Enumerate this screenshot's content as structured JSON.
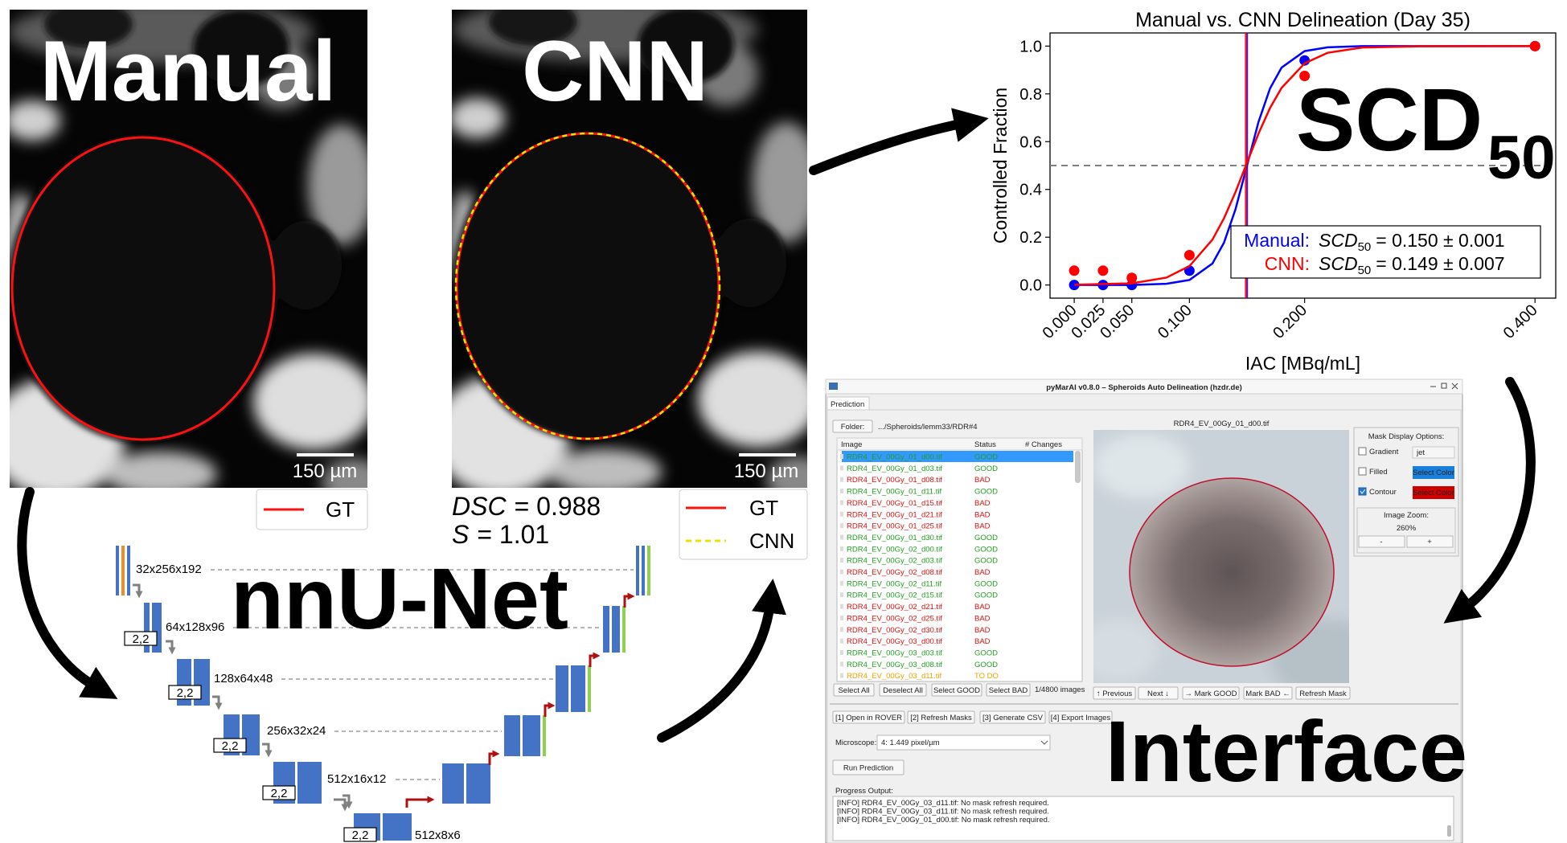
{
  "panels": {
    "manual": {
      "title": "Manual",
      "scale_bar": "150 µm",
      "legend": [
        "GT"
      ]
    },
    "cnn": {
      "title": "CNN",
      "scale_bar": "150 µm",
      "legend": [
        "GT",
        "CNN"
      ],
      "metrics": [
        {
          "symbol": "DSC",
          "text": "= 0.988"
        },
        {
          "symbol": "S",
          "text": "= 1.01"
        }
      ]
    }
  },
  "chart_data": {
    "type": "scatter",
    "title": "Manual vs. CNN Delineation (Day 35)",
    "xlabel": "IAC [MBq/mL]",
    "ylabel": "Controlled Fraction",
    "overlay": "SCD",
    "overlay_sub": "50",
    "fit_symbol": "SCD",
    "fit_symbol_sub": "50",
    "x": [
      0,
      0.025,
      0.05,
      0.1,
      0.2,
      0.4
    ],
    "fit_x": [
      0,
      0.05,
      0.08,
      0.1,
      0.12,
      0.13,
      0.14,
      0.15,
      0.16,
      0.17,
      0.18,
      0.2,
      0.22,
      0.25,
      0.3,
      0.4
    ],
    "series": [
      {
        "name": "Manual:",
        "color": "#0000ff",
        "values": [
          0,
          0,
          0,
          0.06,
          0.94,
          1.0
        ],
        "fit_values": [
          0,
          0,
          0.005,
          0.021,
          0.09,
          0.177,
          0.317,
          0.5,
          0.683,
          0.823,
          0.91,
          0.979,
          0.995,
          1.0,
          1.0,
          1.0
        ],
        "scd50": 0.15,
        "fit_label": "= 0.150 ± 0.001"
      },
      {
        "name": "CNN:",
        "color": "#ff0000",
        "values": [
          0.06,
          0.06,
          0.03,
          0.125,
          0.875,
          1.0
        ],
        "fit_values": [
          0.001,
          0.007,
          0.031,
          0.079,
          0.19,
          0.279,
          0.389,
          0.512,
          0.634,
          0.741,
          0.825,
          0.928,
          0.972,
          0.994,
          0.999,
          1.0
        ],
        "scd50": 0.149,
        "fit_label": "= 0.149 ± 0.007"
      }
    ],
    "hline": 0.5,
    "xlim": [
      -0.021,
      0.418
    ],
    "ylim": [
      -0.055,
      1.055
    ],
    "xticks": [
      {
        "value": 0,
        "label": "0.000"
      },
      {
        "value": 0.025,
        "label": "0.025"
      },
      {
        "value": 0.05,
        "label": "0.050"
      },
      {
        "value": 0.1,
        "label": "0.100"
      },
      {
        "value": 0.2,
        "label": "0.200"
      },
      {
        "value": 0.4,
        "label": "0.400"
      }
    ],
    "yticks": [
      {
        "value": 0,
        "label": "0.0"
      },
      0.2,
      0.4,
      0.6,
      0.8,
      {
        "value": 1,
        "label": "1.0"
      }
    ]
  },
  "unet": {
    "title": "nnU-Net",
    "shapes": [
      "32x256x192",
      "64x128x96",
      "128x64x48",
      "256x32x24",
      "512x16x12",
      "512x8x6"
    ],
    "strides": [
      "2,2",
      "2,2",
      "2,2",
      "2,2",
      "2,2"
    ]
  },
  "interface": {
    "window_title": "pyMarAI v0.8.0 – Spheroids Auto Delineation (hzdr.de)",
    "tab": "Prediction",
    "folder_button": "Folder:",
    "folder_path": ".../Spheroids/lemm33/RDR#4",
    "table": {
      "headers": [
        "Image",
        "Status",
        "# Changes"
      ],
      "rows": [
        {
          "image": "RDR4_EV_00Gy_01_d00.tif",
          "status": "GOOD",
          "color": "#1f9e1f"
        },
        {
          "image": "RDR4_EV_00Gy_01_d03.tif",
          "status": "GOOD",
          "color": "#1f9e1f"
        },
        {
          "image": "RDR4_EV_00Gy_01_d08.tif",
          "status": "BAD",
          "color": "#e01010"
        },
        {
          "image": "RDR4_EV_00Gy_01_d11.tif",
          "status": "GOOD",
          "color": "#1f9e1f"
        },
        {
          "image": "RDR4_EV_00Gy_01_d15.tif",
          "status": "BAD",
          "color": "#e01010"
        },
        {
          "image": "RDR4_EV_00Gy_01_d21.tif",
          "status": "BAD",
          "color": "#e01010"
        },
        {
          "image": "RDR4_EV_00Gy_01_d25.tif",
          "status": "BAD",
          "color": "#e01010"
        },
        {
          "image": "RDR4_EV_00Gy_01_d30.tif",
          "status": "GOOD",
          "color": "#1f9e1f"
        },
        {
          "image": "RDR4_EV_00Gy_02_d00.tif",
          "status": "GOOD",
          "color": "#1f9e1f"
        },
        {
          "image": "RDR4_EV_00Gy_02_d03.tif",
          "status": "GOOD",
          "color": "#1f9e1f"
        },
        {
          "image": "RDR4_EV_00Gy_02_d08.tif",
          "status": "BAD",
          "color": "#e01010"
        },
        {
          "image": "RDR4_EV_00Gy_02_d11.tif",
          "status": "GOOD",
          "color": "#1f9e1f"
        },
        {
          "image": "RDR4_EV_00Gy_02_d15.tif",
          "status": "GOOD",
          "color": "#1f9e1f"
        },
        {
          "image": "RDR4_EV_00Gy_02_d21.tif",
          "status": "BAD",
          "color": "#e01010"
        },
        {
          "image": "RDR4_EV_00Gy_02_d25.tif",
          "status": "BAD",
          "color": "#e01010"
        },
        {
          "image": "RDR4_EV_00Gy_02_d30.tif",
          "status": "BAD",
          "color": "#e01010"
        },
        {
          "image": "RDR4_EV_00Gy_03_d00.tif",
          "status": "BAD",
          "color": "#e01010"
        },
        {
          "image": "RDR4_EV_00Gy_03_d03.tif",
          "status": "GOOD",
          "color": "#1f9e1f"
        },
        {
          "image": "RDR4_EV_00Gy_03_d08.tif",
          "status": "GOOD",
          "color": "#1f9e1f"
        },
        {
          "image": "RDR4_EV_00Gy_03_d11.tif",
          "status": "TO DO",
          "color": "#f0a000"
        }
      ]
    },
    "list_buttons": [
      "Select All",
      "Deselect All",
      "Select GOOD",
      "Select BAD"
    ],
    "image_count": "1/4800 images",
    "image_title": "RDR4_EV_00Gy_01_d00.tif",
    "mask_options": {
      "title": "Mask Display Options:",
      "gradient": "Gradient",
      "colormap": "jet",
      "filled": "Filled",
      "filled_button": "Select Color",
      "contour": "Contour",
      "contour_button": "Select Color",
      "zoom_title": "Image Zoom:",
      "zoom": "260%",
      "zoom_out": "-",
      "zoom_in": "+"
    },
    "nav_buttons": [
      "↑ Previous",
      "Next ↓",
      "→ Mark GOOD",
      "Mark BAD ←",
      "Refresh Mask"
    ],
    "action_buttons": [
      "[1] Open in ROVER",
      "[2] Refresh Masks",
      "[3] Generate CSV",
      "[4] Export Images"
    ],
    "microscope_label": "Microscope:",
    "microscope": "4: 1.449 pixel/µm",
    "run_button": "Run Prediction",
    "progress_label": "Progress Output:",
    "log": [
      "[INFO] RDR4_EV_00Gy_03_d11.tif: No mask refresh required.",
      "[INFO] RDR4_EV_00Gy_03_d11.tif: No mask refresh required.",
      "[INFO] RDR4_EV_00Gy_01_d00.tif: No mask refresh required."
    ],
    "overlay": "Interface"
  }
}
